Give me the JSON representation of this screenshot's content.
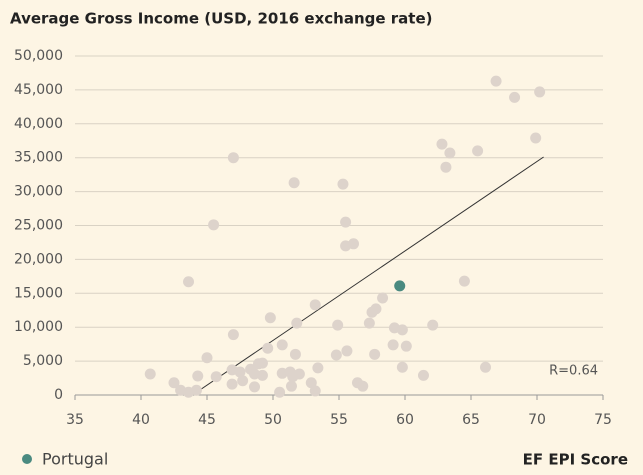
{
  "chart_data": {
    "type": "scatter",
    "title": "Average Gross Income (USD, 2016 exchange rate)",
    "x_label": "EF EPI Score",
    "annotation": "R=0.64",
    "xlim": [
      35,
      75
    ],
    "xticks": [
      35,
      40,
      45,
      50,
      55,
      60,
      65,
      70,
      75
    ],
    "ylim": [
      0,
      50000
    ],
    "yticks": [
      0,
      {
        "value": 5000,
        "label": "5,000"
      },
      {
        "value": 10000,
        "label": "10,000"
      },
      {
        "value": 15000,
        "label": "15,000"
      },
      {
        "value": 20000,
        "label": "20,000"
      },
      {
        "value": 25000,
        "label": "25,000"
      },
      {
        "value": 30000,
        "label": "30,000"
      },
      {
        "value": 35000,
        "label": "35,000"
      },
      {
        "value": 40000,
        "label": "40,000"
      },
      {
        "value": 45000,
        "label": "45,000"
      },
      {
        "value": 50000,
        "label": "50,000"
      }
    ],
    "grid": true,
    "legend": "bottom-left",
    "series": [
      {
        "color": "#ddd3cb",
        "x": [
          40.7,
          42.5,
          43.0,
          43.6,
          44.2,
          44.3,
          43.6,
          45.0,
          45.5,
          45.7,
          47.0,
          47.0,
          46.9,
          46.9,
          47.5,
          47.7,
          48.3,
          48.6,
          48.6,
          48.9,
          49.2,
          49.2,
          49.6,
          49.8,
          50.5,
          50.7,
          50.7,
          51.3,
          51.4,
          51.5,
          51.7,
          51.6,
          51.8,
          52.0,
          52.9,
          53.2,
          53.2,
          53.4,
          54.8,
          54.9,
          55.3,
          55.5,
          55.5,
          55.6,
          56.1,
          56.4,
          56.8,
          57.3,
          57.5,
          57.8,
          57.7,
          58.3,
          59.1,
          59.2,
          59.8,
          59.8,
          60.1,
          61.4,
          62.1,
          62.8,
          63.1,
          63.4,
          64.5,
          65.5,
          66.1,
          66.9,
          68.3,
          69.9,
          70.2
        ],
        "y": [
          3100,
          1800,
          700,
          400,
          700,
          2800,
          16700,
          5500,
          25100,
          2700,
          8900,
          35000,
          3700,
          1600,
          3400,
          2100,
          3800,
          3100,
          1200,
          4600,
          2900,
          4700,
          6900,
          11400,
          400,
          7400,
          3200,
          3400,
          1300,
          2700,
          6000,
          31300,
          10600,
          3100,
          1800,
          600,
          13300,
          4000,
          5900,
          10300,
          31100,
          25500,
          22000,
          6500,
          22300,
          1800,
          1300,
          10600,
          12200,
          12700,
          6000,
          14300,
          7400,
          9900,
          9600,
          4100,
          7200,
          2900,
          10300,
          37000,
          33600,
          35700,
          16800,
          36000,
          4100,
          46300,
          43900,
          37900,
          44700
        ]
      },
      {
        "name": "Portugal",
        "color": "#4a8a80",
        "x": [
          59.6
        ],
        "y": [
          16100
        ]
      }
    ],
    "trendline": {
      "color": "#333333",
      "x": [
        43.9,
        70.5
      ],
      "y": [
        0,
        35100
      ]
    }
  }
}
